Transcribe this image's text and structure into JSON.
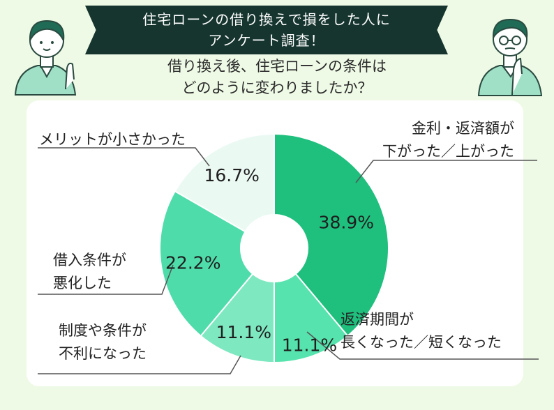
{
  "banner": {
    "line1": "住宅ローンの借り換えで損をした人に",
    "line2": "アンケート調査！"
  },
  "question": {
    "line1": "借り換え後、住宅ローンの条件は",
    "line2": "どのように変わりましたか？"
  },
  "labels": {
    "rate": [
      "金利・返済額が",
      "下がった／上がった"
    ],
    "period": [
      "返済期間が",
      "長くなった／短くなった"
    ],
    "system": [
      "制度や条件が",
      "不利になった"
    ],
    "borrowing": [
      "借入条件が",
      "悪化した"
    ],
    "merit": [
      "メリットが小さかった"
    ]
  },
  "colors": {
    "slice1": "#1fbf7e",
    "slice2": "#56e3ad",
    "slice3": "#7ee8c1",
    "slice4": "#4fdcab",
    "slice5": "#ebf9f3",
    "leader": "#555555"
  },
  "chart_data": {
    "type": "pie",
    "donut": true,
    "categories": [
      "金利・返済額が下がった／上がった",
      "返済期間が長くなった／短くなった",
      "制度や条件が不利になった",
      "借入条件が悪化した",
      "メリットが小さかった"
    ],
    "values": [
      38.9,
      11.1,
      11.1,
      22.2,
      16.7
    ],
    "value_labels": [
      "38.9%",
      "11.1%",
      "11.1%",
      "22.2%",
      "16.7%"
    ],
    "start_angle": "12 o'clock",
    "direction": "clockwise"
  }
}
